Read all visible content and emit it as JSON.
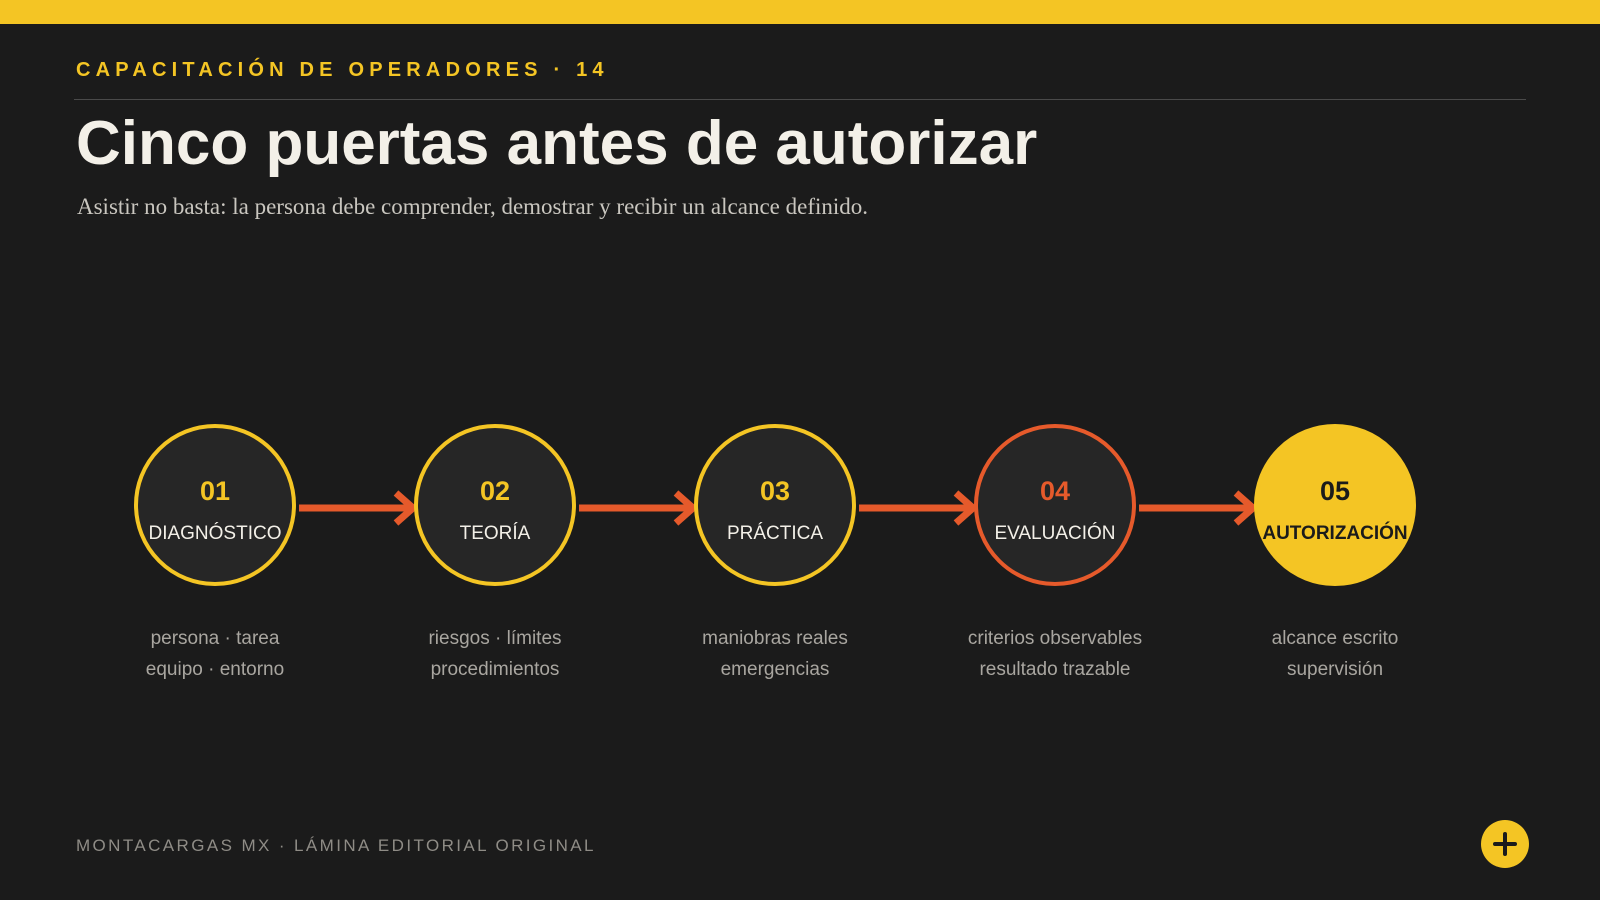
{
  "header": {
    "kicker": "CAPACITACIÓN DE OPERADORES · 14",
    "title": "Cinco puertas antes de autorizar",
    "subtitle": "Asistir no basta: la persona debe comprender, demostrar y recibir un alcance definido."
  },
  "stages": [
    {
      "number": "01",
      "label": "DIAGNÓSTICO",
      "desc_line1": "persona · tarea",
      "desc_line2": "equipo · entorno"
    },
    {
      "number": "02",
      "label": "TEORÍA",
      "desc_line1": "riesgos · límites",
      "desc_line2": "procedimientos"
    },
    {
      "number": "03",
      "label": "PRÁCTICA",
      "desc_line1": "maniobras reales",
      "desc_line2": "emergencias"
    },
    {
      "number": "04",
      "label": "EVALUACIÓN",
      "desc_line1": "criterios observables",
      "desc_line2": "resultado trazable"
    },
    {
      "number": "05",
      "label": "AUTORIZACIÓN",
      "desc_line1": "alcance escrito",
      "desc_line2": "supervisión"
    }
  ],
  "footer": {
    "text": "MONTACARGAS MX · LÁMINA EDITORIAL ORIGINAL"
  },
  "colors": {
    "accent_yellow": "#f4c524",
    "accent_orange": "#e65a2b",
    "background": "#1b1b1b"
  },
  "icons": {
    "fab": "plus-icon"
  }
}
